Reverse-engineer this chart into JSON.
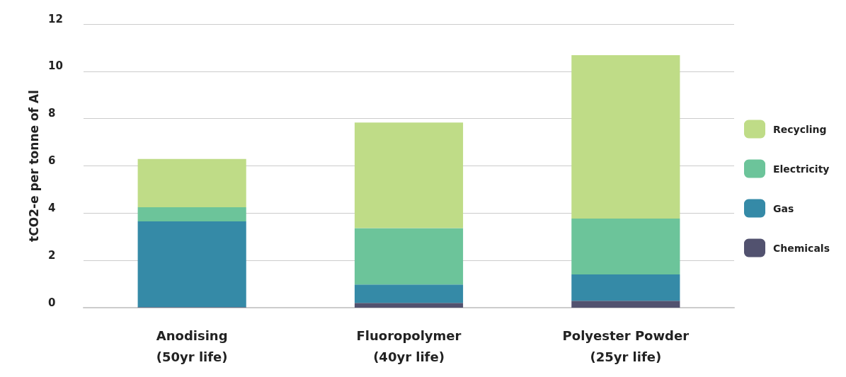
{
  "chart_data": {
    "type": "bar",
    "stacked": true,
    "ylabel": "tCO2-e per tonne of Al",
    "categories": [
      "Anodising\n(50yr life)",
      "Fluoropolymer\n(40yr life)",
      "Polyester Powder\n(25yr life)"
    ],
    "series": [
      {
        "name": "Chemicals",
        "color": "#52526f",
        "values": [
          0.02,
          0.2,
          0.29
        ]
      },
      {
        "name": "Gas",
        "color": "#358aa7",
        "values": [
          3.63,
          0.78,
          1.12
        ]
      },
      {
        "name": "Electricity",
        "color": "#6cc49a",
        "values": [
          0.6,
          2.39,
          2.36
        ]
      },
      {
        "name": "Recycling",
        "color": "#bfdc87",
        "values": [
          2.04,
          4.46,
          6.91
        ]
      }
    ],
    "ylim": [
      0,
      12
    ],
    "yticks": [
      0,
      2,
      4,
      6,
      8,
      10,
      12
    ],
    "grid": "y",
    "legend": "right"
  }
}
